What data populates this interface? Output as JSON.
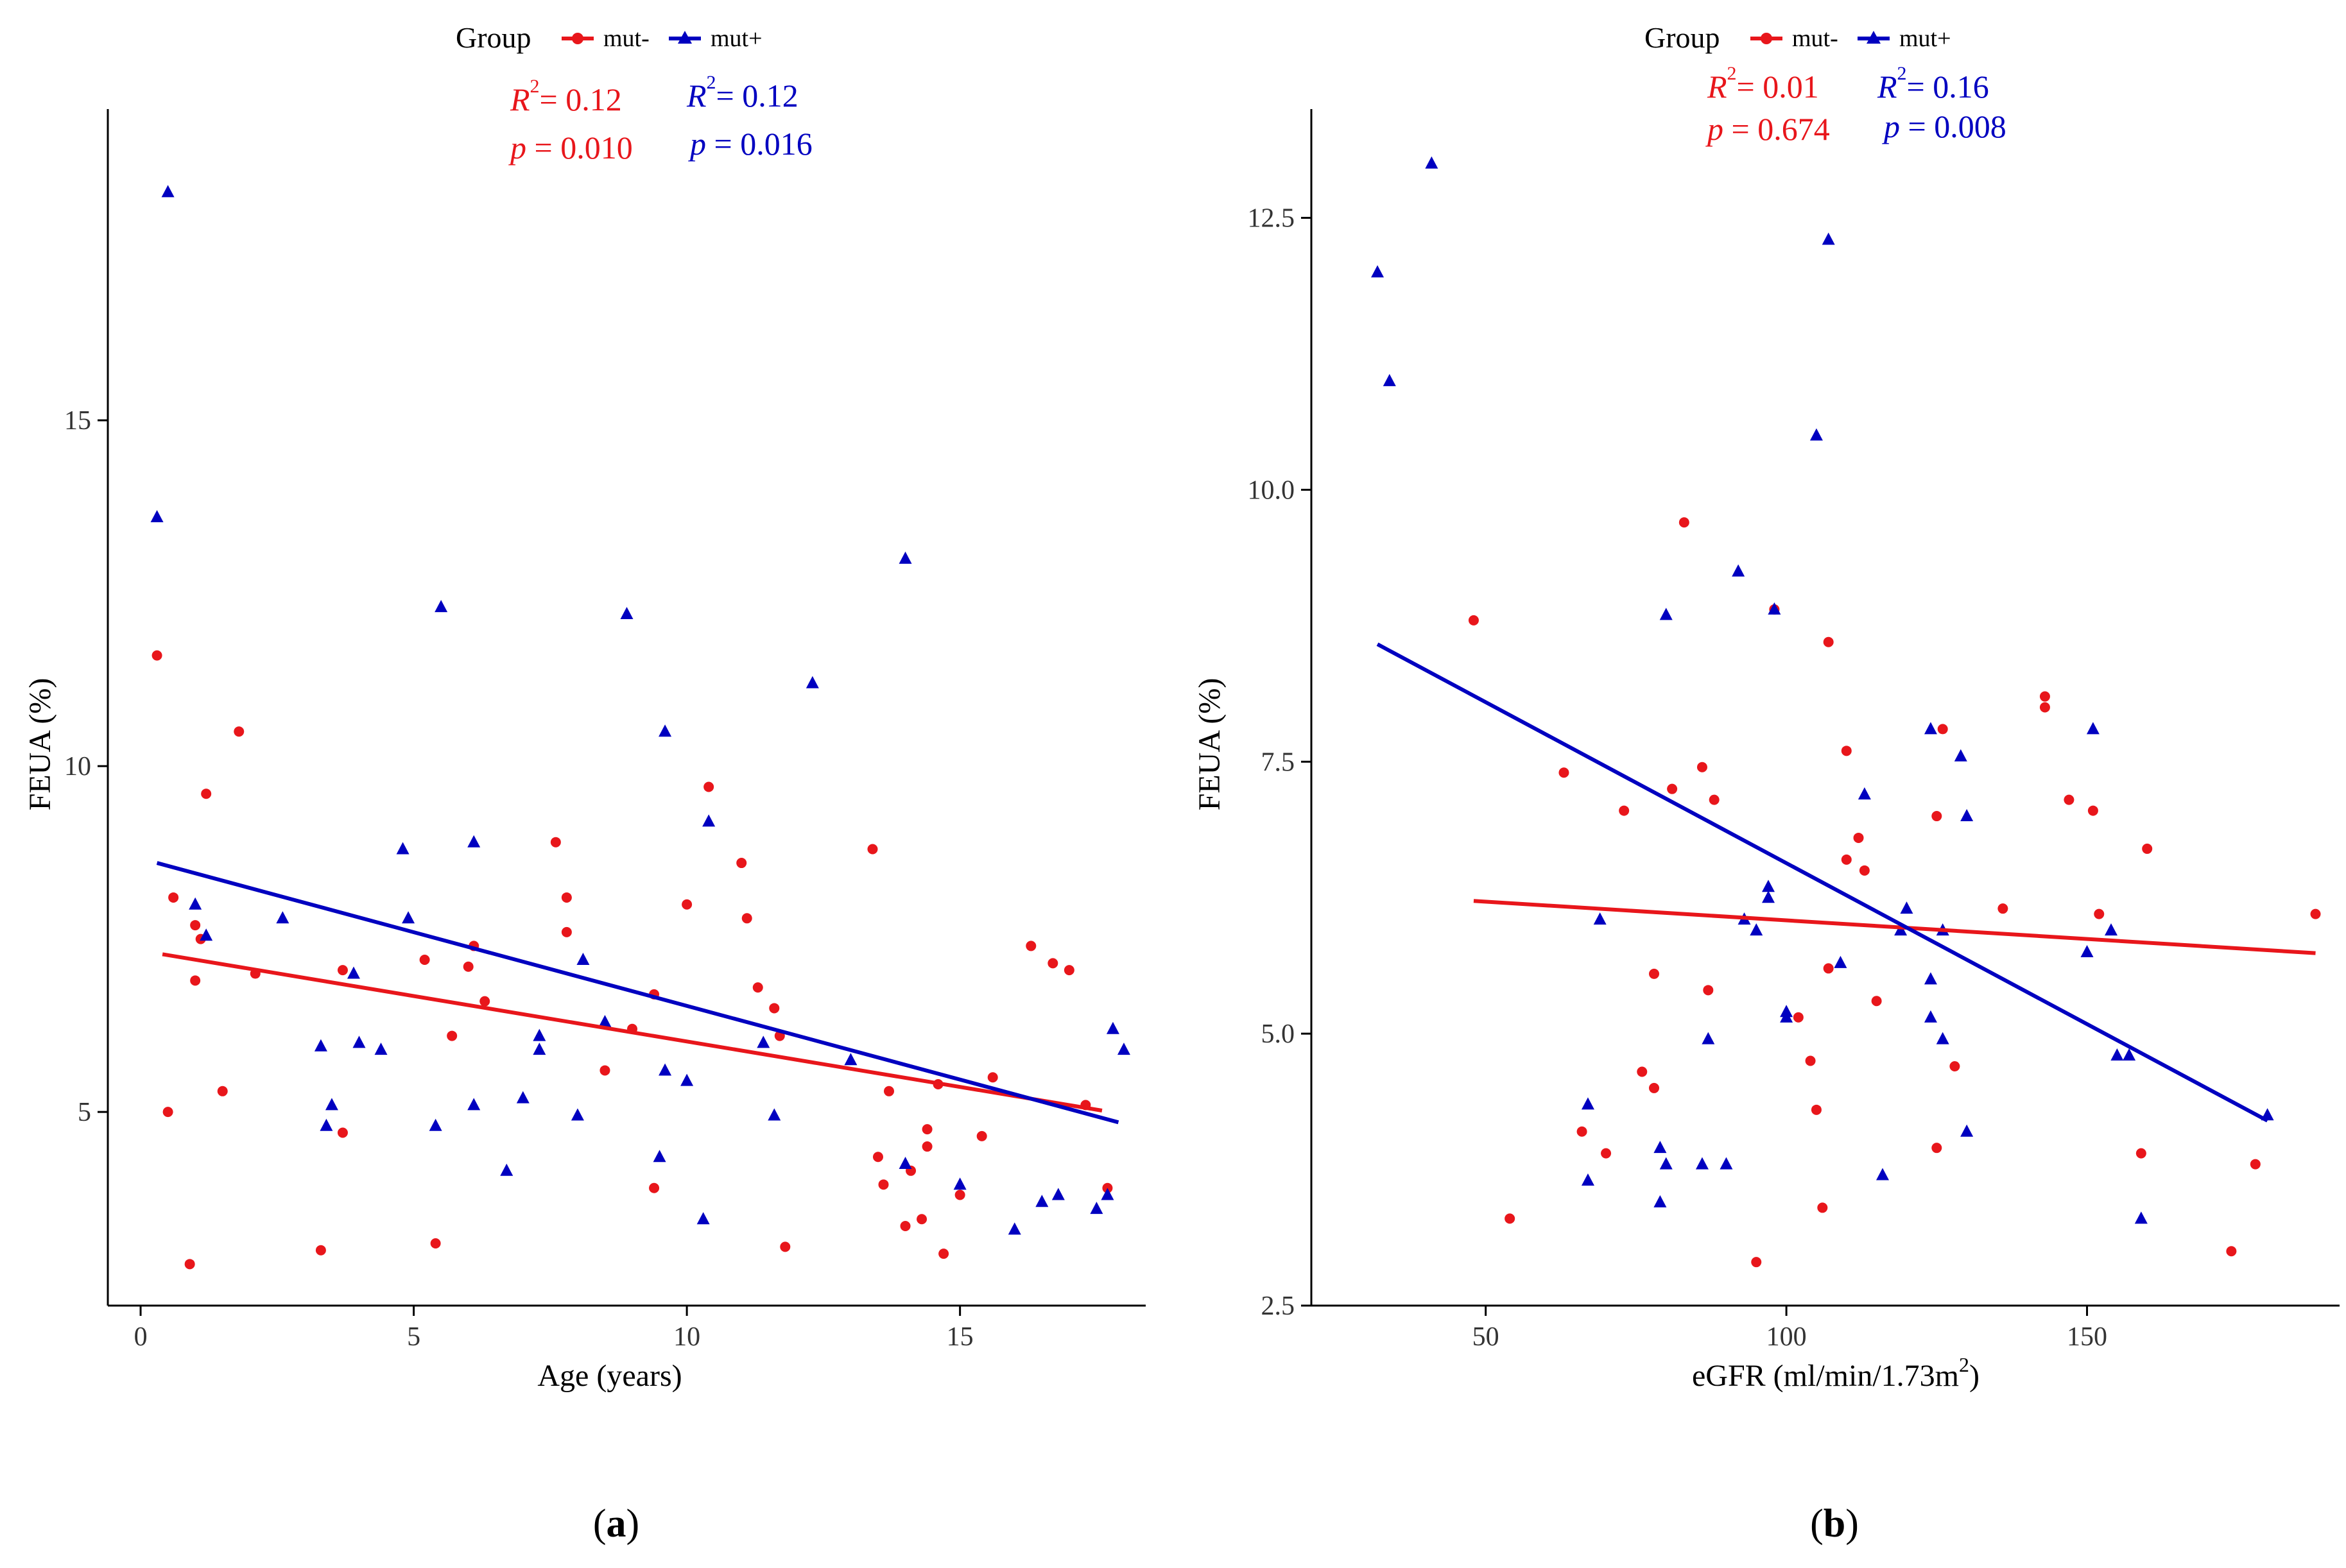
{
  "chart_data": [
    {
      "panel_label": "(a)",
      "type": "scatter",
      "xlabel": "Age (years)",
      "ylabel": "FEUA (%)",
      "xlim": [
        -0.6,
        18.4
      ],
      "ylim": [
        2.2,
        19.5
      ],
      "xticks": [
        0,
        5,
        10,
        15
      ],
      "yticks": [
        5,
        10,
        15
      ],
      "xtick_labels": [
        "0",
        "5",
        "10",
        "15"
      ],
      "ytick_labels": [
        "5",
        "10",
        "15"
      ],
      "legend": {
        "title": "Group",
        "entries": [
          "mut-",
          "mut+"
        ],
        "position": "top"
      },
      "annotations": {
        "mut_minus": {
          "r2": "= 0.12",
          "p": "= 0.010"
        },
        "mut_plus": {
          "r2": "= 0.12",
          "p": "= 0.016"
        }
      },
      "series": [
        {
          "name": "mut-",
          "color": "#e8161b",
          "marker": "circle",
          "fit": [
            [
              0.4,
              7.28
            ],
            [
              17.6,
              5.02
            ]
          ],
          "points": [
            [
              0.3,
              11.6
            ],
            [
              0.5,
              5.0
            ],
            [
              0.6,
              8.1
            ],
            [
              0.9,
              2.8
            ],
            [
              1.0,
              7.7
            ],
            [
              1.0,
              6.9
            ],
            [
              1.1,
              7.5
            ],
            [
              1.2,
              9.6
            ],
            [
              1.5,
              5.3
            ],
            [
              1.8,
              10.5
            ],
            [
              2.1,
              7.0
            ],
            [
              3.3,
              3.0
            ],
            [
              3.7,
              4.7
            ],
            [
              3.7,
              7.05
            ],
            [
              5.2,
              7.2
            ],
            [
              5.4,
              3.1
            ],
            [
              5.7,
              6.1
            ],
            [
              6.0,
              7.1
            ],
            [
              6.1,
              7.4
            ],
            [
              6.3,
              6.6
            ],
            [
              7.6,
              8.9
            ],
            [
              7.8,
              8.1
            ],
            [
              7.8,
              7.6
            ],
            [
              8.5,
              5.6
            ],
            [
              9.0,
              6.2
            ],
            [
              9.4,
              3.9
            ],
            [
              9.4,
              6.7
            ],
            [
              10.0,
              8.0
            ],
            [
              10.4,
              9.7
            ],
            [
              11.0,
              8.6
            ],
            [
              11.1,
              7.8
            ],
            [
              11.3,
              6.8
            ],
            [
              11.6,
              6.5
            ],
            [
              11.7,
              6.1
            ],
            [
              11.8,
              3.05
            ],
            [
              13.4,
              8.8
            ],
            [
              13.5,
              4.35
            ],
            [
              13.6,
              3.95
            ],
            [
              13.7,
              5.3
            ],
            [
              14.0,
              3.35
            ],
            [
              14.1,
              4.15
            ],
            [
              14.3,
              3.45
            ],
            [
              14.4,
              4.5
            ],
            [
              14.4,
              4.75
            ],
            [
              14.6,
              5.4
            ],
            [
              14.7,
              2.95
            ],
            [
              15.0,
              3.8
            ],
            [
              15.4,
              4.65
            ],
            [
              15.6,
              5.5
            ],
            [
              16.3,
              7.4
            ],
            [
              16.7,
              7.15
            ],
            [
              17.0,
              7.05
            ],
            [
              17.3,
              5.1
            ],
            [
              17.7,
              3.9
            ]
          ]
        },
        {
          "name": "mut+",
          "color": "#0000c0",
          "marker": "triangle",
          "fit": [
            [
              0.3,
              8.6
            ],
            [
              17.9,
              4.85
            ]
          ],
          "points": [
            [
              0.3,
              13.6
            ],
            [
              0.5,
              18.3
            ],
            [
              1.0,
              8.0
            ],
            [
              1.2,
              7.55
            ],
            [
              2.6,
              7.8
            ],
            [
              3.3,
              5.95
            ],
            [
              3.4,
              4.8
            ],
            [
              3.5,
              5.1
            ],
            [
              3.9,
              7.0
            ],
            [
              4.0,
              6.0
            ],
            [
              4.4,
              5.9
            ],
            [
              4.8,
              8.8
            ],
            [
              4.9,
              7.8
            ],
            [
              5.4,
              4.8
            ],
            [
              5.5,
              12.3
            ],
            [
              6.1,
              8.9
            ],
            [
              6.1,
              5.1
            ],
            [
              6.7,
              4.15
            ],
            [
              7.0,
              5.2
            ],
            [
              7.3,
              6.1
            ],
            [
              7.3,
              5.9
            ],
            [
              8.0,
              4.95
            ],
            [
              8.1,
              7.2
            ],
            [
              8.5,
              6.3
            ],
            [
              8.9,
              12.2
            ],
            [
              9.5,
              4.35
            ],
            [
              9.6,
              10.5
            ],
            [
              9.6,
              5.6
            ],
            [
              10.0,
              5.45
            ],
            [
              10.3,
              3.45
            ],
            [
              10.4,
              9.2
            ],
            [
              11.4,
              6.0
            ],
            [
              11.6,
              4.95
            ],
            [
              12.3,
              11.2
            ],
            [
              13.0,
              5.75
            ],
            [
              14.0,
              13.0
            ],
            [
              14.0,
              4.25
            ],
            [
              15.0,
              3.95
            ],
            [
              16.0,
              3.3
            ],
            [
              16.5,
              3.7
            ],
            [
              16.8,
              3.8
            ],
            [
              17.5,
              3.6
            ],
            [
              17.7,
              3.8
            ],
            [
              17.8,
              6.2
            ],
            [
              18.0,
              5.9
            ]
          ]
        }
      ]
    },
    {
      "panel_label": "(b)",
      "type": "scatter",
      "xlabel": "eGFR (ml/min/1.73m",
      "xlabel_sup": "2",
      "xlabel_close": ")",
      "ylabel": "FEUA (%)",
      "xlim": [
        21,
        192
      ],
      "ylim": [
        2.5,
        13.5
      ],
      "xticks": [
        50,
        100,
        150
      ],
      "yticks": [
        2.5,
        5.0,
        7.5,
        10.0,
        12.5
      ],
      "xtick_labels": [
        "50",
        "100",
        "150"
      ],
      "ytick_labels": [
        "2.5",
        "5.0",
        "7.5",
        "10.0",
        "12.5"
      ],
      "legend": {
        "title": "Group",
        "entries": [
          "mut-",
          "mut+"
        ],
        "position": "top"
      },
      "annotations": {
        "mut_minus": {
          "r2": "= 0.01",
          "p": "= 0.674"
        },
        "mut_plus": {
          "r2": "= 0.16",
          "p": "= 0.008"
        }
      },
      "series": [
        {
          "name": "mut-",
          "color": "#e8161b",
          "marker": "circle",
          "fit": [
            [
              48,
              6.22
            ],
            [
              188,
              5.74
            ]
          ],
          "points": [
            [
              48,
              8.8
            ],
            [
              54,
              3.3
            ],
            [
              63,
              7.4
            ],
            [
              66,
              4.1
            ],
            [
              70,
              3.9
            ],
            [
              73,
              7.05
            ],
            [
              76,
              4.65
            ],
            [
              78,
              4.5
            ],
            [
              78,
              5.55
            ],
            [
              83,
              9.7
            ],
            [
              86,
              7.45
            ],
            [
              87,
              5.4
            ],
            [
              81,
              7.25
            ],
            [
              88,
              7.15
            ],
            [
              95,
              2.9
            ],
            [
              98,
              8.9
            ],
            [
              102,
              5.15
            ],
            [
              104,
              4.75
            ],
            [
              105,
              4.3
            ],
            [
              106,
              3.4
            ],
            [
              107,
              5.6
            ],
            [
              107,
              8.6
            ],
            [
              110,
              7.6
            ],
            [
              110,
              6.6
            ],
            [
              112,
              6.8
            ],
            [
              113,
              6.5
            ],
            [
              115,
              5.3
            ],
            [
              125,
              3.95
            ],
            [
              125,
              7.0
            ],
            [
              126,
              7.8
            ],
            [
              128,
              4.7
            ],
            [
              136,
              6.15
            ],
            [
              143,
              8.0
            ],
            [
              143,
              8.1
            ],
            [
              147,
              7.15
            ],
            [
              151,
              7.05
            ],
            [
              152,
              6.1
            ],
            [
              159,
              3.9
            ],
            [
              160,
              6.7
            ],
            [
              174,
              3.0
            ],
            [
              178,
              3.8
            ],
            [
              188,
              6.1
            ]
          ]
        },
        {
          "name": "mut+",
          "color": "#0000c0",
          "marker": "triangle",
          "fit": [
            [
              32,
              8.58
            ],
            [
              180,
              4.2
            ]
          ],
          "points": [
            [
              32,
              12.0
            ],
            [
              34,
              11.0
            ],
            [
              41,
              13.0
            ],
            [
              67,
              4.35
            ],
            [
              67,
              3.65
            ],
            [
              69,
              6.05
            ],
            [
              79,
              3.95
            ],
            [
              79,
              3.45
            ],
            [
              80,
              8.85
            ],
            [
              80,
              3.8
            ],
            [
              86,
              3.8
            ],
            [
              87,
              4.95
            ],
            [
              90,
              3.8
            ],
            [
              92,
              9.25
            ],
            [
              93,
              6.05
            ],
            [
              95,
              5.95
            ],
            [
              97,
              6.25
            ],
            [
              97,
              6.35
            ],
            [
              98,
              8.9
            ],
            [
              100,
              5.2
            ],
            [
              100,
              5.15
            ],
            [
              105,
              10.5
            ],
            [
              107,
              12.3
            ],
            [
              109,
              5.65
            ],
            [
              116,
              3.7
            ],
            [
              119,
              5.95
            ],
            [
              120,
              6.15
            ],
            [
              113,
              7.2
            ],
            [
              124,
              5.15
            ],
            [
              124,
              5.5
            ],
            [
              124,
              7.8
            ],
            [
              126,
              4.95
            ],
            [
              126,
              5.95
            ],
            [
              129,
              7.55
            ],
            [
              130,
              7.0
            ],
            [
              130,
              4.1
            ],
            [
              150,
              5.75
            ],
            [
              151,
              7.8
            ],
            [
              154,
              5.95
            ],
            [
              155,
              4.8
            ],
            [
              157,
              4.8
            ],
            [
              159,
              3.3
            ],
            [
              180,
              4.25
            ]
          ]
        }
      ]
    }
  ],
  "colors": {
    "mut_minus": "#e8161b",
    "mut_plus": "#0000c0",
    "axis": "#000000"
  }
}
